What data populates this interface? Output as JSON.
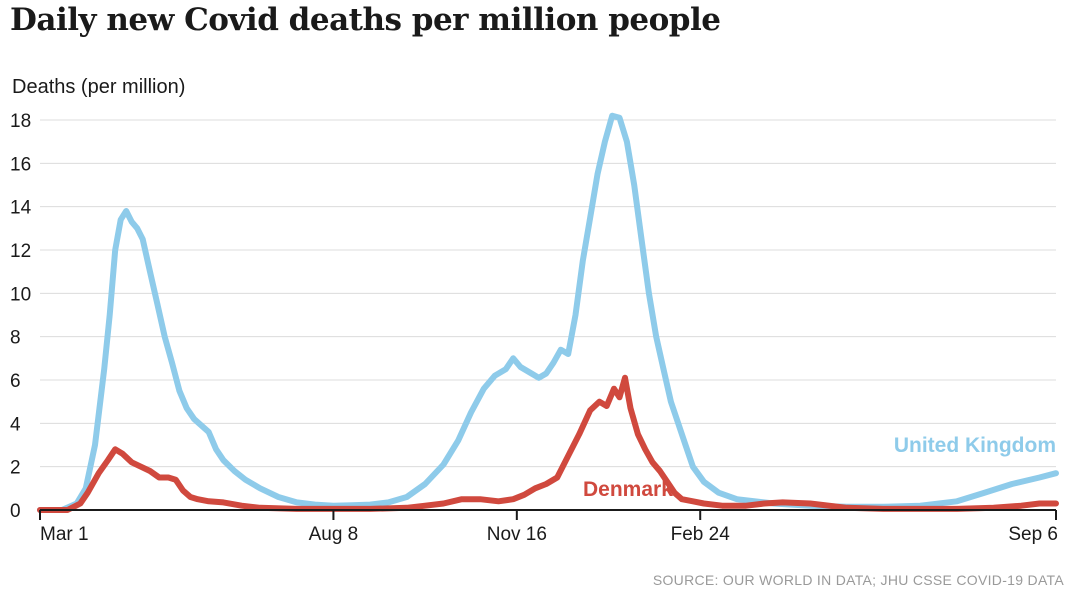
{
  "chart_data": {
    "type": "line",
    "title": "Daily new Covid deaths per million people",
    "ylabel": "Deaths (per million)",
    "xlabel": "",
    "ylim": [
      0,
      18
    ],
    "yticks": [
      0,
      2,
      4,
      6,
      8,
      10,
      12,
      14,
      16,
      18
    ],
    "grid": true,
    "x_ticks": [
      {
        "label": "Mar 1",
        "day": 0
      },
      {
        "label": "Aug 8",
        "day": 160
      },
      {
        "label": "Nov 16",
        "day": 260
      },
      {
        "label": "Feb 24",
        "day": 360
      },
      {
        "label": "Sep 6",
        "day": 554
      }
    ],
    "x_range_days": [
      0,
      554
    ],
    "series": [
      {
        "name": "United Kingdom",
        "color": "#8ecbea",
        "points": [
          [
            0,
            0
          ],
          [
            12,
            0
          ],
          [
            20,
            0.3
          ],
          [
            25,
            1
          ],
          [
            30,
            3
          ],
          [
            35,
            6.5
          ],
          [
            38,
            9
          ],
          [
            41,
            12
          ],
          [
            44,
            13.4
          ],
          [
            47,
            13.8
          ],
          [
            50,
            13.3
          ],
          [
            53,
            13
          ],
          [
            56,
            12.5
          ],
          [
            60,
            11
          ],
          [
            64,
            9.5
          ],
          [
            68,
            8
          ],
          [
            72,
            6.8
          ],
          [
            76,
            5.5
          ],
          [
            80,
            4.7
          ],
          [
            84,
            4.2
          ],
          [
            88,
            3.9
          ],
          [
            92,
            3.6
          ],
          [
            96,
            2.8
          ],
          [
            100,
            2.3
          ],
          [
            106,
            1.8
          ],
          [
            112,
            1.4
          ],
          [
            120,
            1
          ],
          [
            130,
            0.6
          ],
          [
            140,
            0.35
          ],
          [
            150,
            0.25
          ],
          [
            160,
            0.2
          ],
          [
            170,
            0.22
          ],
          [
            180,
            0.25
          ],
          [
            190,
            0.35
          ],
          [
            200,
            0.6
          ],
          [
            210,
            1.2
          ],
          [
            220,
            2.1
          ],
          [
            228,
            3.2
          ],
          [
            235,
            4.5
          ],
          [
            242,
            5.6
          ],
          [
            248,
            6.2
          ],
          [
            254,
            6.5
          ],
          [
            258,
            7
          ],
          [
            262,
            6.6
          ],
          [
            268,
            6.3
          ],
          [
            272,
            6.1
          ],
          [
            276,
            6.3
          ],
          [
            280,
            6.8
          ],
          [
            284,
            7.4
          ],
          [
            288,
            7.2
          ],
          [
            292,
            9
          ],
          [
            296,
            11.5
          ],
          [
            300,
            13.5
          ],
          [
            304,
            15.5
          ],
          [
            308,
            17
          ],
          [
            312,
            18.2
          ],
          [
            316,
            18.1
          ],
          [
            320,
            17
          ],
          [
            324,
            15
          ],
          [
            328,
            12.5
          ],
          [
            332,
            10
          ],
          [
            336,
            8
          ],
          [
            340,
            6.5
          ],
          [
            344,
            5
          ],
          [
            348,
            4
          ],
          [
            352,
            3
          ],
          [
            356,
            2
          ],
          [
            362,
            1.3
          ],
          [
            370,
            0.8
          ],
          [
            380,
            0.5
          ],
          [
            390,
            0.4
          ],
          [
            400,
            0.3
          ],
          [
            420,
            0.2
          ],
          [
            440,
            0.15
          ],
          [
            460,
            0.15
          ],
          [
            480,
            0.2
          ],
          [
            500,
            0.4
          ],
          [
            515,
            0.8
          ],
          [
            530,
            1.2
          ],
          [
            545,
            1.5
          ],
          [
            554,
            1.7
          ]
        ]
      },
      {
        "name": "Denmark",
        "color": "#d0493e",
        "points": [
          [
            0,
            0
          ],
          [
            15,
            0
          ],
          [
            22,
            0.3
          ],
          [
            26,
            0.8
          ],
          [
            32,
            1.7
          ],
          [
            37,
            2.3
          ],
          [
            41,
            2.8
          ],
          [
            45,
            2.6
          ],
          [
            50,
            2.2
          ],
          [
            55,
            2
          ],
          [
            60,
            1.8
          ],
          [
            65,
            1.5
          ],
          [
            70,
            1.5
          ],
          [
            74,
            1.4
          ],
          [
            78,
            0.9
          ],
          [
            82,
            0.6
          ],
          [
            86,
            0.5
          ],
          [
            92,
            0.4
          ],
          [
            100,
            0.35
          ],
          [
            110,
            0.2
          ],
          [
            120,
            0.1
          ],
          [
            140,
            0.05
          ],
          [
            160,
            0.05
          ],
          [
            180,
            0.05
          ],
          [
            200,
            0.1
          ],
          [
            210,
            0.2
          ],
          [
            220,
            0.3
          ],
          [
            230,
            0.5
          ],
          [
            240,
            0.5
          ],
          [
            250,
            0.4
          ],
          [
            258,
            0.5
          ],
          [
            264,
            0.7
          ],
          [
            270,
            1
          ],
          [
            276,
            1.2
          ],
          [
            282,
            1.5
          ],
          [
            288,
            2.5
          ],
          [
            294,
            3.5
          ],
          [
            300,
            4.6
          ],
          [
            305,
            5
          ],
          [
            309,
            4.8
          ],
          [
            313,
            5.6
          ],
          [
            316,
            5.2
          ],
          [
            319,
            6.1
          ],
          [
            322,
            4.7
          ],
          [
            326,
            3.5
          ],
          [
            330,
            2.8
          ],
          [
            334,
            2.2
          ],
          [
            338,
            1.8
          ],
          [
            342,
            1.3
          ],
          [
            346,
            0.8
          ],
          [
            350,
            0.5
          ],
          [
            356,
            0.4
          ],
          [
            362,
            0.3
          ],
          [
            372,
            0.2
          ],
          [
            385,
            0.2
          ],
          [
            395,
            0.3
          ],
          [
            405,
            0.35
          ],
          [
            420,
            0.3
          ],
          [
            440,
            0.1
          ],
          [
            460,
            0.05
          ],
          [
            480,
            0.05
          ],
          [
            500,
            0.05
          ],
          [
            520,
            0.1
          ],
          [
            535,
            0.2
          ],
          [
            545,
            0.3
          ],
          [
            554,
            0.3
          ]
        ]
      }
    ],
    "annotations": [
      {
        "text": "United Kingdom",
        "series": "United Kingdom"
      },
      {
        "text": "Denmark",
        "series": "Denmark"
      }
    ],
    "source": "SOURCE: OUR WORLD IN DATA; JHU CSSE COVID-19 DATA"
  }
}
